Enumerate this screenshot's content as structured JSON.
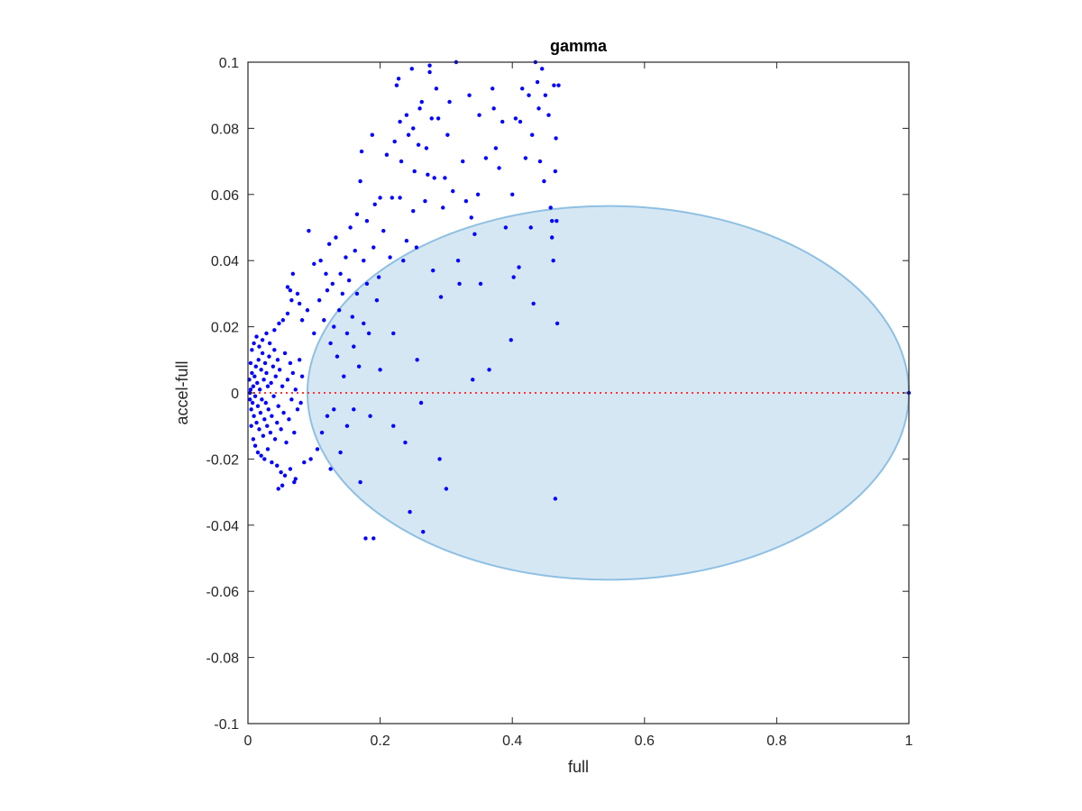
{
  "chart_data": {
    "type": "scatter",
    "title": "gamma",
    "xlabel": "full",
    "ylabel": "accel-full",
    "xlim": [
      0,
      1
    ],
    "ylim": [
      -0.1,
      0.1
    ],
    "x_ticks": [
      0,
      0.2,
      0.4,
      0.6,
      0.8,
      1
    ],
    "x_tick_labels": [
      "0",
      "0.2",
      "0.4",
      "0.6",
      "0.8",
      "1"
    ],
    "y_ticks": [
      -0.1,
      -0.08,
      -0.06,
      -0.04,
      -0.02,
      0,
      0.02,
      0.04,
      0.06,
      0.08,
      0.1
    ],
    "y_tick_labels": [
      "-0.1",
      "-0.08",
      "-0.06",
      "-0.04",
      "-0.02",
      "0",
      "0.02",
      "0.04",
      "0.06",
      "0.08",
      "0.1"
    ],
    "grid": false,
    "colors": {
      "points": "#0000ff",
      "ellipse_fill": "#d6e7f4",
      "ellipse_edge": "#8ec0e2",
      "zero_line": "#ff3333",
      "axes": "#262626"
    },
    "ellipse": {
      "center": [
        0.545,
        0
      ],
      "semi_axis_x": 0.455,
      "semi_axis_y": 0.0565
    },
    "reference_line": {
      "y": 0,
      "x_range": [
        0,
        1
      ],
      "style": "dotted"
    },
    "points": [
      [
        0.002,
        0.004
      ],
      [
        0.003,
        -0.002
      ],
      [
        0.004,
        0.001
      ],
      [
        0.005,
        -0.005
      ],
      [
        0.006,
        0.006
      ],
      [
        0.003,
        0.0
      ],
      [
        0.007,
        -0.003
      ],
      [
        0.008,
        0.002
      ],
      [
        0.009,
        -0.007
      ],
      [
        0.01,
        0.005
      ],
      [
        0.011,
        -0.001
      ],
      [
        0.012,
        0.008
      ],
      [
        0.013,
        -0.009
      ],
      [
        0.014,
        0.003
      ],
      [
        0.015,
        -0.004
      ],
      [
        0.016,
        0.01
      ],
      [
        0.017,
        -0.011
      ],
      [
        0.018,
        0.001
      ],
      [
        0.019,
        -0.006
      ],
      [
        0.02,
        0.007
      ],
      [
        0.021,
        -0.002
      ],
      [
        0.022,
        0.012
      ],
      [
        0.023,
        -0.013
      ],
      [
        0.024,
        0.004
      ],
      [
        0.025,
        -0.008
      ],
      [
        0.026,
        0.009
      ],
      [
        0.027,
        -0.003
      ],
      [
        0.028,
        0.006
      ],
      [
        0.029,
        -0.01
      ],
      [
        0.03,
        0.002
      ],
      [
        0.031,
        -0.005
      ],
      [
        0.032,
        0.011
      ],
      [
        0.034,
        -0.012
      ],
      [
        0.035,
        0.003
      ],
      [
        0.036,
        -0.007
      ],
      [
        0.038,
        0.008
      ],
      [
        0.039,
        -0.001
      ],
      [
        0.04,
        0.013
      ],
      [
        0.041,
        -0.014
      ],
      [
        0.042,
        0.005
      ],
      [
        0.044,
        -0.009
      ],
      [
        0.045,
        0.01
      ],
      [
        0.046,
        -0.004
      ],
      [
        0.048,
        0.007
      ],
      [
        0.05,
        -0.011
      ],
      [
        0.052,
        0.002
      ],
      [
        0.054,
        -0.006
      ],
      [
        0.056,
        0.012
      ],
      [
        0.058,
        -0.015
      ],
      [
        0.06,
        0.004
      ],
      [
        0.062,
        -0.008
      ],
      [
        0.064,
        0.009
      ],
      [
        0.066,
        -0.002
      ],
      [
        0.068,
        0.006
      ],
      [
        0.07,
        -0.012
      ],
      [
        0.072,
        0.001
      ],
      [
        0.075,
        -0.005
      ],
      [
        0.078,
        0.01
      ],
      [
        0.08,
        -0.003
      ],
      [
        0.082,
        0.005
      ],
      [
        0.004,
        0.009
      ],
      [
        0.005,
        -0.01
      ],
      [
        0.006,
        0.013
      ],
      [
        0.008,
        -0.014
      ],
      [
        0.009,
        0.015
      ],
      [
        0.011,
        -0.016
      ],
      [
        0.013,
        0.017
      ],
      [
        0.015,
        -0.018
      ],
      [
        0.017,
        0.014
      ],
      [
        0.02,
        -0.019
      ],
      [
        0.022,
        0.016
      ],
      [
        0.025,
        -0.02
      ],
      [
        0.028,
        0.018
      ],
      [
        0.03,
        -0.017
      ],
      [
        0.033,
        0.015
      ],
      [
        0.036,
        -0.021
      ],
      [
        0.04,
        0.019
      ],
      [
        0.044,
        -0.022
      ],
      [
        0.047,
        0.021
      ],
      [
        0.05,
        -0.024
      ],
      [
        0.053,
        0.022
      ],
      [
        0.056,
        -0.025
      ],
      [
        0.06,
        0.024
      ],
      [
        0.064,
        -0.023
      ],
      [
        0.066,
        0.028
      ],
      [
        0.068,
        0.036
      ],
      [
        0.07,
        -0.027
      ],
      [
        0.075,
        0.03
      ],
      [
        0.046,
        -0.029
      ],
      [
        0.052,
        -0.028
      ],
      [
        0.06,
        0.032
      ],
      [
        0.064,
        0.031
      ],
      [
        0.072,
        -0.026
      ],
      [
        0.078,
        0.027
      ],
      [
        0.082,
        0.022
      ],
      [
        0.085,
        -0.021
      ],
      [
        0.09,
        0.025
      ],
      [
        0.092,
        0.049
      ],
      [
        0.095,
        -0.02
      ],
      [
        0.1,
        0.018
      ],
      [
        0.1,
        0.039
      ],
      [
        0.105,
        -0.017
      ],
      [
        0.108,
        0.028
      ],
      [
        0.11,
        0.04
      ],
      [
        0.112,
        -0.012
      ],
      [
        0.115,
        0.022
      ],
      [
        0.118,
        0.036
      ],
      [
        0.12,
        -0.007
      ],
      [
        0.12,
        0.031
      ],
      [
        0.123,
        0.045
      ],
      [
        0.125,
        0.015
      ],
      [
        0.125,
        -0.023
      ],
      [
        0.128,
        0.033
      ],
      [
        0.13,
        0.02
      ],
      [
        0.13,
        -0.005
      ],
      [
        0.133,
        0.047
      ],
      [
        0.135,
        0.011
      ],
      [
        0.138,
        0.025
      ],
      [
        0.14,
        -0.018
      ],
      [
        0.14,
        0.036
      ],
      [
        0.143,
        0.03
      ],
      [
        0.145,
        0.005
      ],
      [
        0.148,
        0.041
      ],
      [
        0.15,
        0.018
      ],
      [
        0.15,
        -0.01
      ],
      [
        0.153,
        0.034
      ],
      [
        0.155,
        0.05
      ],
      [
        0.158,
        0.023
      ],
      [
        0.16,
        0.014
      ],
      [
        0.16,
        -0.005
      ],
      [
        0.162,
        0.043
      ],
      [
        0.165,
        0.054
      ],
      [
        0.165,
        0.03
      ],
      [
        0.168,
        0.008
      ],
      [
        0.17,
        -0.027
      ],
      [
        0.17,
        0.064
      ],
      [
        0.172,
        0.073
      ],
      [
        0.175,
        0.021
      ],
      [
        0.175,
        0.04
      ],
      [
        0.178,
        -0.044
      ],
      [
        0.18,
        0.052
      ],
      [
        0.18,
        0.033
      ],
      [
        0.183,
        0.018
      ],
      [
        0.185,
        -0.007
      ],
      [
        0.188,
        0.078
      ],
      [
        0.19,
        0.044
      ],
      [
        0.19,
        -0.044
      ],
      [
        0.192,
        0.057
      ],
      [
        0.195,
        0.028
      ],
      [
        0.198,
        0.035
      ],
      [
        0.2,
        0.059
      ],
      [
        0.2,
        0.007
      ],
      [
        0.205,
        0.049
      ],
      [
        0.21,
        0.072
      ],
      [
        0.215,
        0.041
      ],
      [
        0.218,
        0.059
      ],
      [
        0.22,
        0.018
      ],
      [
        0.22,
        -0.01
      ],
      [
        0.222,
        0.076
      ],
      [
        0.225,
        0.093
      ],
      [
        0.228,
        0.095
      ],
      [
        0.23,
        0.082
      ],
      [
        0.23,
        0.059
      ],
      [
        0.232,
        0.07
      ],
      [
        0.235,
        0.04
      ],
      [
        0.238,
        -0.015
      ],
      [
        0.24,
        0.084
      ],
      [
        0.24,
        0.046
      ],
      [
        0.243,
        0.078
      ],
      [
        0.245,
        -0.036
      ],
      [
        0.248,
        0.098
      ],
      [
        0.25,
        0.08
      ],
      [
        0.25,
        0.055
      ],
      [
        0.252,
        0.067
      ],
      [
        0.255,
        0.044
      ],
      [
        0.256,
        0.01
      ],
      [
        0.258,
        0.075
      ],
      [
        0.26,
        0.086
      ],
      [
        0.262,
        -0.003
      ],
      [
        0.263,
        0.088
      ],
      [
        0.265,
        -0.042
      ],
      [
        0.268,
        0.058
      ],
      [
        0.27,
        0.074
      ],
      [
        0.272,
        0.066
      ],
      [
        0.275,
        0.099
      ],
      [
        0.275,
        0.097
      ],
      [
        0.278,
        0.083
      ],
      [
        0.28,
        0.037
      ],
      [
        0.282,
        0.065
      ],
      [
        0.285,
        0.092
      ],
      [
        0.288,
        0.083
      ],
      [
        0.29,
        -0.02
      ],
      [
        0.292,
        0.029
      ],
      [
        0.295,
        0.056
      ],
      [
        0.298,
        0.065
      ],
      [
        0.3,
        -0.029
      ],
      [
        0.302,
        0.078
      ],
      [
        0.305,
        0.088
      ],
      [
        0.31,
        0.061
      ],
      [
        0.315,
        0.1
      ],
      [
        0.318,
        0.04
      ],
      [
        0.32,
        0.033
      ],
      [
        0.325,
        0.07
      ],
      [
        0.33,
        0.058
      ],
      [
        0.335,
        0.09
      ],
      [
        0.338,
        0.053
      ],
      [
        0.34,
        0.004
      ],
      [
        0.343,
        0.048
      ],
      [
        0.348,
        0.06
      ],
      [
        0.35,
        0.084
      ],
      [
        0.352,
        0.033
      ],
      [
        0.36,
        0.071
      ],
      [
        0.365,
        0.007
      ],
      [
        0.37,
        0.092
      ],
      [
        0.372,
        0.086
      ],
      [
        0.375,
        0.074
      ],
      [
        0.38,
        0.068
      ],
      [
        0.385,
        0.082
      ],
      [
        0.39,
        0.05
      ],
      [
        0.398,
        0.016
      ],
      [
        0.4,
        0.06
      ],
      [
        0.402,
        0.035
      ],
      [
        0.405,
        0.083
      ],
      [
        0.41,
        0.038
      ],
      [
        0.412,
        0.082
      ],
      [
        0.415,
        0.092
      ],
      [
        0.42,
        0.071
      ],
      [
        0.425,
        0.09
      ],
      [
        0.428,
        0.05
      ],
      [
        0.43,
        0.078
      ],
      [
        0.432,
        0.027
      ],
      [
        0.435,
        0.1
      ],
      [
        0.438,
        0.094
      ],
      [
        0.44,
        0.086
      ],
      [
        0.442,
        0.07
      ],
      [
        0.445,
        0.098
      ],
      [
        0.448,
        0.064
      ],
      [
        0.45,
        0.09
      ],
      [
        0.455,
        0.084
      ],
      [
        0.458,
        0.056
      ],
      [
        0.46,
        0.052
      ],
      [
        0.46,
        0.047
      ],
      [
        0.462,
        0.04
      ],
      [
        0.463,
        0.093
      ],
      [
        0.465,
        -0.032
      ],
      [
        0.465,
        0.067
      ],
      [
        0.466,
        0.077
      ],
      [
        0.467,
        0.052
      ],
      [
        0.468,
        0.021
      ],
      [
        0.47,
        0.093
      ],
      [
        1.0,
        0.0
      ]
    ]
  }
}
